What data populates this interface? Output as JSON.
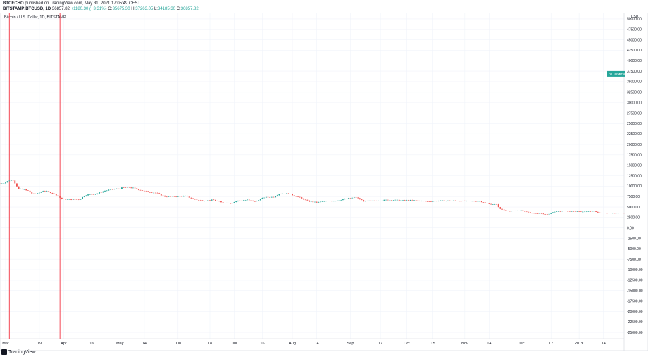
{
  "header": {
    "publisher": "BTCECHO",
    "published_text": "published on TradingView.com, May 31, 2021 17:05:49 CEST",
    "symbol_line": "BITSTAMP:BTCUSD, 1D",
    "last": "36857.82",
    "change": "+1180.30 (+3.31%)",
    "o_label": "O:",
    "o": "35675.30",
    "h_label": "H:",
    "h": "37263.05",
    "l_label": "L:",
    "l": "34185.30",
    "c_label": "C:",
    "c": "36857.82"
  },
  "legend_title": "Bitcoin / U.S. Dollar, 1D, BITSTAMP",
  "price_axis": {
    "currency": "USD",
    "badge_symbol": "BTCUSD",
    "badge_time": "18:54:14",
    "badge_price": 36857.82
  },
  "footer": {
    "brand": "TradingView"
  },
  "colors": {
    "up": "#26a69a",
    "down": "#ef5350",
    "vline": "#f23645",
    "grid": "#f0f3fa",
    "text": "#131722"
  },
  "chart_data": {
    "type": "candlestick",
    "ylim": [
      -26500,
      51500
    ],
    "yticks": [
      50000,
      47500,
      45000,
      42500,
      40000,
      37500,
      35000,
      32500,
      30000,
      27500,
      25000,
      22500,
      20000,
      17500,
      15000,
      12500,
      10000,
      7500,
      5000,
      2500,
      0,
      -2500,
      -5000,
      -7500,
      -10000,
      -12500,
      -15000,
      -17500,
      -20000,
      -22500,
      -25000
    ],
    "ytick_labels": [
      "50000.00",
      "47500.00",
      "45000.00",
      "42500.00",
      "40000.00",
      "37500.00",
      "35000.00",
      "32500.00",
      "30000.00",
      "27500.00",
      "25000.00",
      "22500.00",
      "20000.00",
      "17500.00",
      "15000.00",
      "12500.00",
      "10000.00",
      "7500.00",
      "5000.00",
      "2500.00",
      "0.00",
      "-2500.00",
      "-5000.00",
      "-7500.00",
      "-10000.00",
      "-12500.00",
      "-15000.00",
      "-17500.00",
      "-20000.00",
      "-22500.00",
      "-25000.00"
    ],
    "xlim": [
      "2018-02-26",
      "2019-01-25"
    ],
    "xticks": [
      {
        "date": "2018-03-01",
        "label": "Mar"
      },
      {
        "date": "2018-03-19",
        "label": "19"
      },
      {
        "date": "2018-04-01",
        "label": "Apr"
      },
      {
        "date": "2018-04-16",
        "label": "16"
      },
      {
        "date": "2018-05-01",
        "label": "May"
      },
      {
        "date": "2018-05-14",
        "label": "14"
      },
      {
        "date": "2018-06-01",
        "label": "Jun"
      },
      {
        "date": "2018-06-18",
        "label": "18"
      },
      {
        "date": "2018-07-01",
        "label": "Jul"
      },
      {
        "date": "2018-07-16",
        "label": "16"
      },
      {
        "date": "2018-08-01",
        "label": "Aug"
      },
      {
        "date": "2018-08-14",
        "label": "14"
      },
      {
        "date": "2018-09-01",
        "label": "Sep"
      },
      {
        "date": "2018-09-17",
        "label": "17"
      },
      {
        "date": "2018-10-01",
        "label": "Oct"
      },
      {
        "date": "2018-10-15",
        "label": "15"
      },
      {
        "date": "2018-11-01",
        "label": "Nov"
      },
      {
        "date": "2018-11-14",
        "label": "14"
      },
      {
        "date": "2018-12-01",
        "label": "Dec"
      },
      {
        "date": "2018-12-17",
        "label": "17"
      },
      {
        "date": "2019-01-01",
        "label": "2019"
      },
      {
        "date": "2019-01-14",
        "label": "14"
      }
    ],
    "vertical_lines": [
      "2018-03-03",
      "2018-03-30"
    ],
    "close_series": [
      [
        "2018-02-26",
        10600
      ],
      [
        "2018-03-01",
        10900
      ],
      [
        "2018-03-03",
        11400
      ],
      [
        "2018-03-05",
        11500
      ],
      [
        "2018-03-08",
        9300
      ],
      [
        "2018-03-12",
        9100
      ],
      [
        "2018-03-15",
        8200
      ],
      [
        "2018-03-18",
        8200
      ],
      [
        "2018-03-21",
        8900
      ],
      [
        "2018-03-25",
        8500
      ],
      [
        "2018-03-28",
        7900
      ],
      [
        "2018-03-31",
        6900
      ],
      [
        "2018-04-04",
        6800
      ],
      [
        "2018-04-09",
        6800
      ],
      [
        "2018-04-13",
        7900
      ],
      [
        "2018-04-18",
        8100
      ],
      [
        "2018-04-23",
        8900
      ],
      [
        "2018-04-28",
        9300
      ],
      [
        "2018-05-03",
        9600
      ],
      [
        "2018-05-06",
        9700
      ],
      [
        "2018-05-10",
        9300
      ],
      [
        "2018-05-15",
        8700
      ],
      [
        "2018-05-20",
        8400
      ],
      [
        "2018-05-25",
        7500
      ],
      [
        "2018-05-30",
        7500
      ],
      [
        "2018-06-05",
        7600
      ],
      [
        "2018-06-10",
        6800
      ],
      [
        "2018-06-14",
        6500
      ],
      [
        "2018-06-20",
        6700
      ],
      [
        "2018-06-24",
        6100
      ],
      [
        "2018-06-29",
        5900
      ],
      [
        "2018-07-03",
        6500
      ],
      [
        "2018-07-08",
        6700
      ],
      [
        "2018-07-12",
        6300
      ],
      [
        "2018-07-17",
        7300
      ],
      [
        "2018-07-22",
        7400
      ],
      [
        "2018-07-25",
        8200
      ],
      [
        "2018-07-30",
        8200
      ],
      [
        "2018-08-04",
        7400
      ],
      [
        "2018-08-10",
        6300
      ],
      [
        "2018-08-14",
        6100
      ],
      [
        "2018-08-19",
        6400
      ],
      [
        "2018-08-24",
        6500
      ],
      [
        "2018-08-30",
        7000
      ],
      [
        "2018-09-04",
        7300
      ],
      [
        "2018-09-08",
        6400
      ],
      [
        "2018-09-14",
        6500
      ],
      [
        "2018-09-21",
        6700
      ],
      [
        "2018-09-28",
        6600
      ],
      [
        "2018-10-05",
        6600
      ],
      [
        "2018-10-12",
        6300
      ],
      [
        "2018-10-19",
        6500
      ],
      [
        "2018-10-26",
        6500
      ],
      [
        "2018-11-02",
        6400
      ],
      [
        "2018-11-09",
        6400
      ],
      [
        "2018-11-14",
        5700
      ],
      [
        "2018-11-18",
        5600
      ],
      [
        "2018-11-20",
        4500
      ],
      [
        "2018-11-25",
        4000
      ],
      [
        "2018-12-01",
        4200
      ],
      [
        "2018-12-07",
        3500
      ],
      [
        "2018-12-12",
        3400
      ],
      [
        "2018-12-15",
        3200
      ],
      [
        "2018-12-19",
        3900
      ],
      [
        "2018-12-24",
        4100
      ],
      [
        "2018-12-30",
        3900
      ],
      [
        "2019-01-05",
        3900
      ],
      [
        "2019-01-09",
        4000
      ],
      [
        "2019-01-12",
        3600
      ],
      [
        "2019-01-17",
        3600
      ],
      [
        "2019-01-25",
        3550
      ]
    ]
  }
}
